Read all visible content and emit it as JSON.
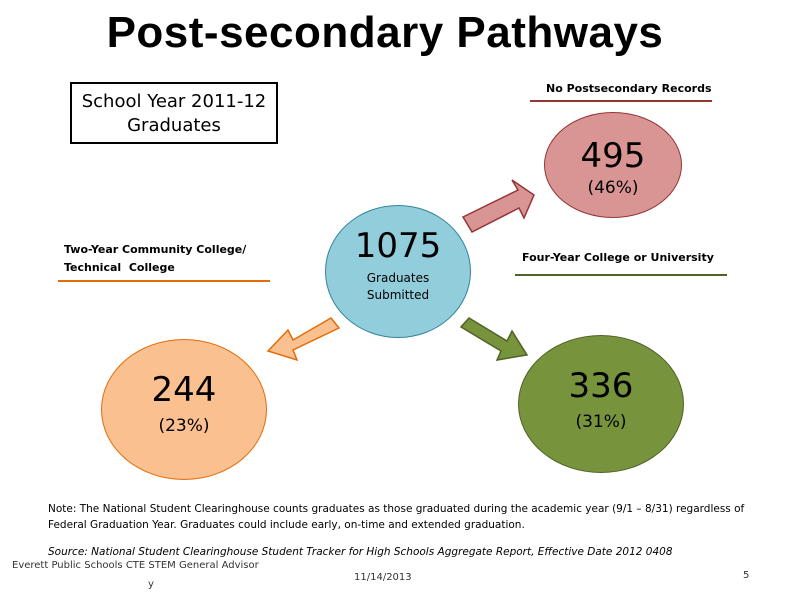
{
  "title": "Post-secondary Pathways",
  "school_year_box": {
    "line1": "School Year 2011-12",
    "line2": "Graduates"
  },
  "center": {
    "value": "1075",
    "label_line1": "Graduates",
    "label_line2": "Submitted"
  },
  "no_records": {
    "label": "No Postsecondary Records",
    "value": "495",
    "percent": "(46%)"
  },
  "four_year": {
    "label": "Four-Year College or University",
    "value": "336",
    "percent": "(31%)"
  },
  "two_year": {
    "label_line1": "Two-Year Community College/",
    "label_line2": "Technical  College",
    "value": "244",
    "percent": "(23%)"
  },
  "note": "Note: The National Student Clearinghouse counts graduates as those graduated during the academic year (9/1 – 8/31) regardless of Federal Graduation Year.  Graduates could include early, on-time and extended graduation.",
  "source": "Source: National Student Clearinghouse Student Tracker for High Schools Aggregate Report, Effective Date 2012 0408",
  "footer": {
    "org_line1": "Everett Public Schools CTE STEM General Advisor",
    "org_line2": "y",
    "date": "11/14/2013",
    "page": "5"
  },
  "colors": {
    "center_fill": "#92cddc",
    "no_records_fill": "#d99594",
    "four_year_fill": "#77933c",
    "two_year_fill": "#fac090",
    "no_records_rule": "#943634",
    "four_year_rule": "#4f6228",
    "two_year_rule": "#e36c09"
  }
}
